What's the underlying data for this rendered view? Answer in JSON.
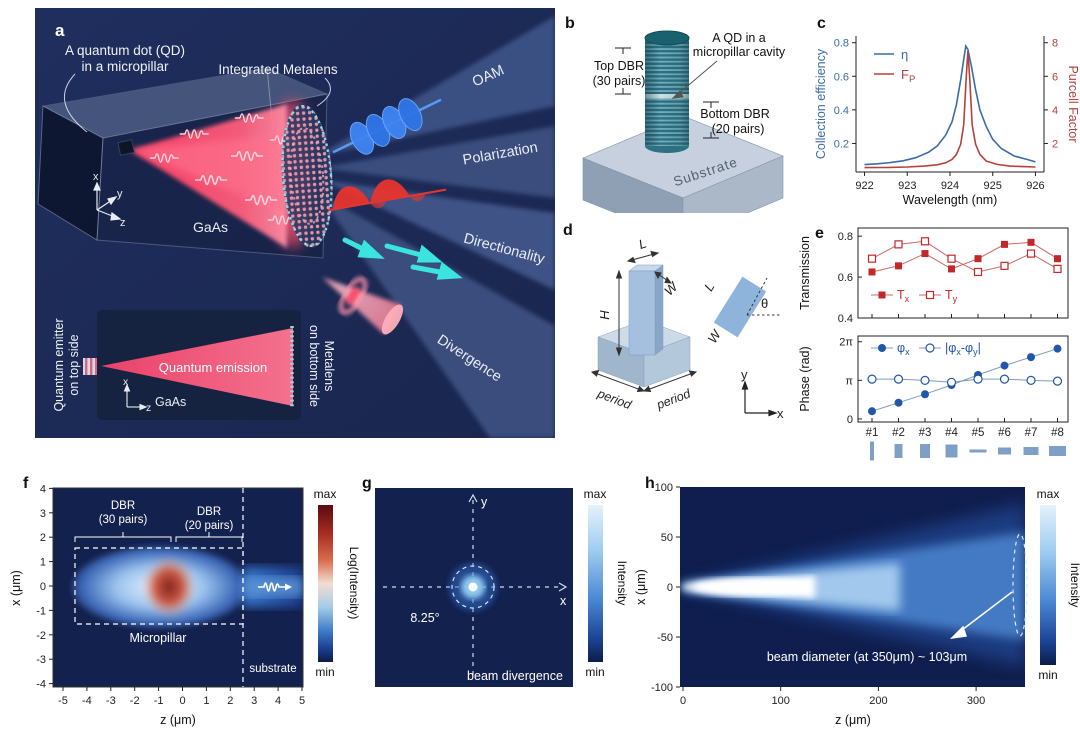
{
  "panel_a": {
    "label": "a",
    "qd_caption_line1": "A quantum dot (QD)",
    "qd_caption_line2": "in a micropillar",
    "metalens_caption": "Integrated Metalens",
    "material": "GaAs",
    "beams": [
      "OAM",
      "Polarization",
      "Directionality",
      "Divergence"
    ],
    "axes": {
      "x": "x",
      "y": "y",
      "z": "z"
    },
    "colors": {
      "emission_pink": "#ff5577",
      "oam_blue": "#3f84f2",
      "polarization_red": "#e6352e",
      "directionality_cyan": "#3ce4df",
      "background_navy": "#1d2a55"
    },
    "inset": {
      "left_label_line1": "Quantum emitter",
      "left_label_line2": "on top side",
      "emission_label": "Quantum emission",
      "material": "GaAs",
      "right_label_line1": "Metalens",
      "right_label_line2": "on bottom side",
      "axis_x": "x",
      "axis_z": "z"
    }
  },
  "panel_b": {
    "label": "b",
    "top_dbr_line1": "Top DBR",
    "top_dbr_line2": "(30 pairs)",
    "qd_line1": "A QD in a",
    "qd_line2": "micropillar cavity",
    "bottom_dbr_line1": "Bottom DBR",
    "bottom_dbr_line2": "(20 pairs)",
    "substrate": "Substrate"
  },
  "panel_c": {
    "label": "c",
    "legend_eta": "η",
    "legend_fp_main": "F",
    "legend_fp_sub": "P"
  },
  "panel_d": {
    "label": "d",
    "dim_h": "H",
    "dim_l": "L",
    "dim_w": "W",
    "period_left": "period",
    "period_right": "period",
    "rot_l": "L",
    "rot_w": "W",
    "theta": "θ",
    "axis_x": "x",
    "axis_y": "y"
  },
  "panel_e": {
    "label": "e",
    "legend_tx_main": "T",
    "legend_tx_sub": "x",
    "legend_ty_main": "T",
    "legend_ty_sub": "y",
    "legend_phix_main": "φ",
    "legend_phix_sub": "x",
    "legend_dphi_p1": "|φ",
    "legend_dphi_s1": "x",
    "legend_dphi_p2": "-φ",
    "legend_dphi_s2": "y",
    "legend_dphi_p3": "|"
  },
  "panel_f": {
    "label": "f"
  },
  "panel_g": {
    "label": "g"
  },
  "panel_h": {
    "label": "h"
  },
  "chart_data": [
    {
      "id": "c",
      "type": "line",
      "xlabel": "Wavelength (nm)",
      "ylabel_left": "Collection efficiency",
      "ylabel_right": "Purcell Factor",
      "x_ticks": [
        922,
        923,
        924,
        925,
        926
      ],
      "y_ticks_left": [
        0.2,
        0.4,
        0.6,
        0.8
      ],
      "y_ticks_right": [
        2,
        4,
        6,
        8
      ],
      "xlim": [
        921.8,
        926.2
      ],
      "ylim_left": [
        0.03,
        0.84
      ],
      "ylim_right": [
        0.3,
        8.4
      ],
      "legend_position": "upper-left",
      "series": [
        {
          "name": "η",
          "axis": "left",
          "color": "#3a6ca8",
          "x": [
            922.0,
            922.3,
            922.6,
            922.9,
            923.2,
            923.5,
            923.7,
            923.9,
            924.05,
            924.15,
            924.25,
            924.32,
            924.37,
            924.42,
            924.5,
            924.6,
            924.7,
            924.85,
            925.0,
            925.2,
            925.5,
            925.8,
            926.0
          ],
          "y": [
            0.074,
            0.079,
            0.086,
            0.097,
            0.115,
            0.148,
            0.185,
            0.25,
            0.33,
            0.43,
            0.58,
            0.7,
            0.78,
            0.76,
            0.66,
            0.52,
            0.4,
            0.3,
            0.225,
            0.17,
            0.125,
            0.105,
            0.09
          ]
        },
        {
          "name": "F_P",
          "axis": "right",
          "color": "#b5413c",
          "x": [
            922.0,
            922.5,
            923.0,
            923.4,
            923.7,
            923.9,
            924.05,
            924.15,
            924.25,
            924.32,
            924.38,
            924.42,
            924.46,
            924.52,
            924.6,
            924.7,
            924.85,
            925.1,
            925.4,
            925.7,
            926.0
          ],
          "y": [
            0.56,
            0.57,
            0.6,
            0.65,
            0.73,
            0.85,
            1.05,
            1.35,
            1.95,
            3.1,
            5.9,
            7.5,
            5.9,
            3.1,
            1.95,
            1.35,
            0.95,
            0.75,
            0.65,
            0.62,
            0.6
          ]
        }
      ]
    },
    {
      "id": "e_transmission",
      "type": "line-markers",
      "ylabel": "Transmission",
      "categories": [
        "#1",
        "#2",
        "#3",
        "#4",
        "#5",
        "#6",
        "#7",
        "#8"
      ],
      "y_ticks": [
        0.4,
        0.6,
        0.8
      ],
      "ylim": [
        0.4,
        0.84
      ],
      "series": [
        {
          "name": "Tx",
          "marker": "filled-square",
          "color": "#c32727",
          "values": [
            0.625,
            0.655,
            0.715,
            0.64,
            0.69,
            0.76,
            0.77,
            0.69
          ]
        },
        {
          "name": "Ty",
          "marker": "open-square",
          "color": "#c66",
          "values": [
            0.69,
            0.76,
            0.775,
            0.69,
            0.625,
            0.655,
            0.715,
            0.64
          ]
        }
      ]
    },
    {
      "id": "e_phase",
      "type": "line-markers",
      "ylabel": "Phase (rad)",
      "categories": [
        "#1",
        "#2",
        "#3",
        "#4",
        "#5",
        "#6",
        "#7",
        "#8"
      ],
      "y_ticks": [
        {
          "label": "0",
          "value": 0
        },
        {
          "label": "π",
          "value": 3.1416
        },
        {
          "label": "2π",
          "value": 6.2832
        }
      ],
      "ylim": [
        -0.25,
        6.75
      ],
      "series": [
        {
          "name": "φx",
          "marker": "filled-circle",
          "color": "#2157a8",
          "values": [
            0.63,
            1.32,
            2.01,
            2.76,
            3.58,
            4.34,
            5.03,
            5.72
          ]
        },
        {
          "name": "|φx-φy|",
          "marker": "open-circle",
          "color": "#2157a8",
          "values": [
            3.24,
            3.24,
            3.14,
            2.98,
            3.24,
            3.24,
            3.14,
            3.08
          ]
        }
      ],
      "pillar_glyphs": [
        [
          4,
          19
        ],
        [
          8,
          14
        ],
        [
          10,
          14
        ],
        [
          12,
          13
        ],
        [
          17,
          3
        ],
        [
          13,
          7
        ],
        [
          15,
          8
        ],
        [
          17,
          10
        ]
      ],
      "glyph_color": "#7fa0c6"
    },
    {
      "id": "f",
      "type": "heatmap",
      "xlabel": "z (μm)",
      "ylabel": "x (μm)",
      "x_ticks": [
        -5,
        -4,
        -3,
        -2,
        -1,
        0,
        1,
        2,
        3,
        4,
        5
      ],
      "y_ticks": [
        4,
        3,
        2,
        1,
        0,
        -1,
        -2,
        -3,
        -4
      ],
      "colorbar": {
        "max": "max",
        "min": "min",
        "label": "Log(Intensity)",
        "gradient": [
          "#5a0b10",
          "#a62c22",
          "#d96b4c",
          "#f1ded2",
          "#a6cbe8",
          "#3f7cc8",
          "#1b3c8e",
          "#0e1b45"
        ]
      },
      "annotations": {
        "dbr30_line1": "DBR",
        "dbr30_line2": "(30 pairs)",
        "dbr20_line1": "DBR",
        "dbr20_line2": "(20 pairs)",
        "micropillar": "Micropillar",
        "substrate": "substrate"
      },
      "features": {
        "micropillar_z_range": [
          -4.5,
          2.55
        ],
        "micropillar_x_range": [
          -1.55,
          1.55
        ],
        "substrate_boundary_z": 2.55,
        "hotspot_z": -0.55
      }
    },
    {
      "id": "g",
      "type": "heatmap",
      "axis_x": "x",
      "axis_y": "y",
      "annotations": {
        "divergence_angle": "8.25°",
        "caption": "beam divergence"
      },
      "colorbar": {
        "max": "max",
        "min": "min",
        "label": "Intensity",
        "gradient": [
          "#e4f2fc",
          "#9ccbf0",
          "#4a88d4",
          "#1c4496",
          "#0d1c4a"
        ]
      }
    },
    {
      "id": "h",
      "type": "heatmap",
      "xlabel": "z (μm)",
      "ylabel": "x (μm)",
      "x_ticks": [
        0,
        100,
        200,
        300
      ],
      "y_ticks": [
        100,
        50,
        0,
        -50,
        -100
      ],
      "xlim": [
        0,
        350
      ],
      "ylim": [
        -100,
        100
      ],
      "annotations": {
        "beam_diameter": "beam diameter (at 350μm) ~ 103μm"
      },
      "colorbar": {
        "max": "max",
        "min": "min",
        "label": "Intensity",
        "gradient": [
          "#e4f2fc",
          "#9ccbf0",
          "#4a88d4",
          "#1c4496",
          "#0d1c4a"
        ]
      }
    }
  ]
}
